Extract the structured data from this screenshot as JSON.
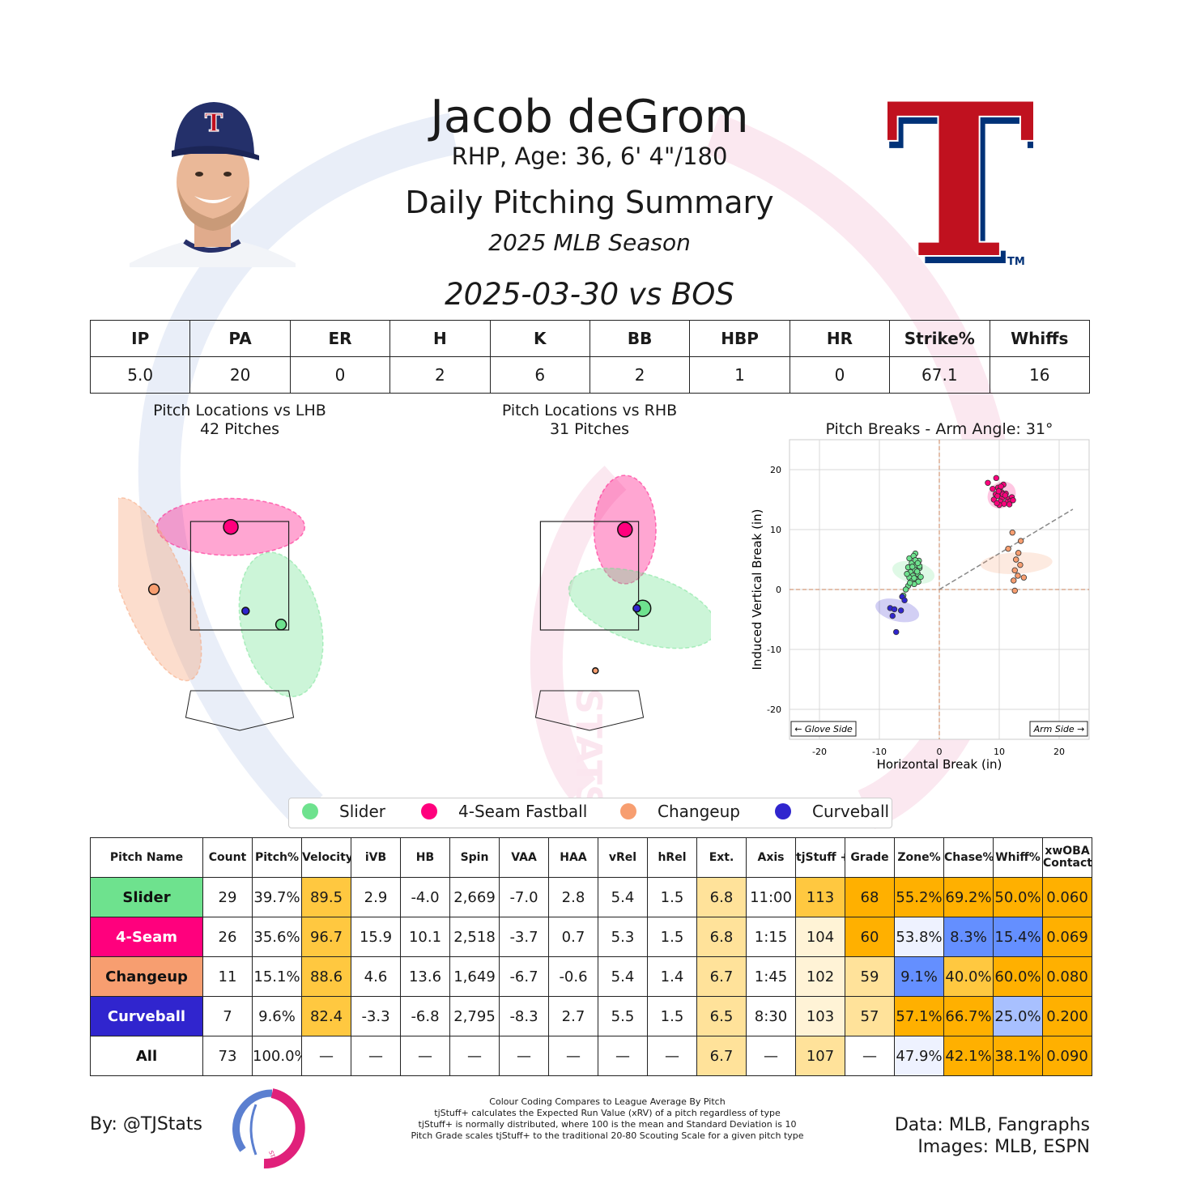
{
  "header": {
    "player_name": "Jacob deGrom",
    "player_info": "RHP, Age: 36, 6' 4\"/180",
    "report_title": "Daily Pitching Summary",
    "season": "2025 MLB Season",
    "game": "2025-03-30 vs BOS",
    "team_logo_letter": "T",
    "team_logo_tm": "TM",
    "headshot_cap_letter": "T"
  },
  "colors": {
    "slider": "#6ee28e",
    "fourseam": "#ff007d",
    "changeup": "#f79e70",
    "curveball": "#3025ce",
    "cell_hi_strong": "#ffb000",
    "cell_hi_mid": "#ffc840",
    "cell_hi_light": "#ffe29a",
    "cell_hi_faint": "#fff3d6",
    "cell_lo_strong": "#648fff",
    "cell_lo_light": "#a8c0ff",
    "cell_lo_faint": "#eef2ff"
  },
  "line_stats": {
    "headers": [
      "IP",
      "PA",
      "ER",
      "H",
      "K",
      "BB",
      "HBP",
      "HR",
      "Strike%",
      "Whiffs"
    ],
    "values": [
      "5.0",
      "20",
      "0",
      "2",
      "6",
      "2",
      "1",
      "0",
      "67.1",
      "16"
    ]
  },
  "plots": {
    "lhb_title": "Pitch Locations vs LHB",
    "lhb_count": "42 Pitches",
    "rhb_title": "Pitch Locations vs RHB",
    "rhb_count": "31 Pitches",
    "break_title": "Pitch Breaks - Arm Angle: 31°",
    "glove_side": "← Glove Side",
    "arm_side": "Arm Side →"
  },
  "legend": [
    "Slider",
    "4-Seam Fastball",
    "Changeup",
    "Curveball"
  ],
  "pitch_table": {
    "headers": [
      "Pitch Name",
      "Count",
      "Pitch%",
      "Velocity",
      "iVB",
      "HB",
      "Spin",
      "VAA",
      "HAA",
      "vRel",
      "hRel",
      "Ext.",
      "Axis",
      "tjStuff +",
      "Grade",
      "Zone%",
      "Chase%",
      "Whiff%",
      "xwOBA\nContact"
    ],
    "rows": [
      {
        "name": "Slider",
        "cells": [
          "29",
          "39.7%",
          "89.5",
          "2.9",
          "-4.0",
          "2,669",
          "-7.0",
          "2.8",
          "5.4",
          "1.5",
          "6.8",
          "11:00",
          "113",
          "68",
          "55.2%",
          "69.2%",
          "50.0%",
          "0.060"
        ]
      },
      {
        "name": "4-Seam",
        "cells": [
          "26",
          "35.6%",
          "96.7",
          "15.9",
          "10.1",
          "2,518",
          "-3.7",
          "0.7",
          "5.3",
          "1.5",
          "6.8",
          "1:15",
          "104",
          "60",
          "53.8%",
          "8.3%",
          "15.4%",
          "0.069"
        ]
      },
      {
        "name": "Changeup",
        "cells": [
          "11",
          "15.1%",
          "88.6",
          "4.6",
          "13.6",
          "1,649",
          "-6.7",
          "-0.6",
          "5.4",
          "1.4",
          "6.7",
          "1:45",
          "102",
          "59",
          "9.1%",
          "40.0%",
          "60.0%",
          "0.080"
        ]
      },
      {
        "name": "Curveball",
        "cells": [
          "7",
          "9.6%",
          "82.4",
          "-3.3",
          "-6.8",
          "2,795",
          "-8.3",
          "2.7",
          "5.5",
          "1.5",
          "6.5",
          "8:30",
          "103",
          "57",
          "57.1%",
          "66.7%",
          "25.0%",
          "0.200"
        ]
      },
      {
        "name": "All",
        "cells": [
          "73",
          "100.0%",
          "—",
          "—",
          "—",
          "—",
          "—",
          "—",
          "—",
          "—",
          "6.7",
          "—",
          "107",
          "—",
          "47.9%",
          "42.1%",
          "38.1%",
          "0.090"
        ]
      }
    ],
    "shading": [
      [
        "",
        "",
        "mid",
        "",
        "",
        "",
        "",
        "",
        "",
        "",
        "light",
        "",
        "mid",
        "strong",
        "strong",
        "strong",
        "strong",
        "strong"
      ],
      [
        "",
        "",
        "mid",
        "",
        "",
        "",
        "",
        "",
        "",
        "",
        "light",
        "",
        "faint",
        "strong",
        "lofaint",
        "lo",
        "lo",
        "strong"
      ],
      [
        "",
        "",
        "mid",
        "",
        "",
        "",
        "",
        "",
        "",
        "",
        "light",
        "",
        "faint",
        "light",
        "lo",
        "mid",
        "strong",
        "strong"
      ],
      [
        "",
        "",
        "mid",
        "",
        "",
        "",
        "",
        "",
        "",
        "",
        "light",
        "",
        "faint",
        "light",
        "strong",
        "strong",
        "lolight",
        "strong"
      ],
      [
        "",
        "",
        "",
        "",
        "",
        "",
        "",
        "",
        "",
        "",
        "light",
        "",
        "light",
        "",
        "lofaint",
        "strong",
        "strong",
        "strong"
      ]
    ]
  },
  "footer": {
    "byline": "By: @TJStats",
    "notes": [
      "Colour Coding Compares to League Average By Pitch",
      "tjStuff+ calculates the Expected Run Value (xRV) of a pitch regardless of type",
      "tjStuff+ is normally distributed, where 100 is the mean and Standard Deviation is 10",
      "Pitch Grade scales tjStuff+ to the traditional 20-80 Scouting Scale for a given pitch type"
    ],
    "data_credit": "Data: MLB, Fangraphs",
    "image_credit": "Images: MLB, ESPN",
    "logo_text": "STATS"
  },
  "chart_data": [
    {
      "type": "scatter",
      "title": "Pitch Locations vs LHB",
      "subtitle": "42 Pitches",
      "series": [
        {
          "name": "4-Seam Fastball",
          "mean": {
            "x": -0.15,
            "z": 3.4
          },
          "ellipse": {
            "w": 2.5,
            "h": 1.05,
            "angle": 0
          }
        },
        {
          "name": "Changeup",
          "mean": {
            "x": -1.45,
            "z": 2.25
          },
          "ellipse": {
            "w": 1.1,
            "h": 3.6,
            "angle": -22
          }
        },
        {
          "name": "Curveball",
          "mean": {
            "x": 0.1,
            "z": 1.85
          },
          "ellipse": {
            "w": 0,
            "h": 0,
            "angle": 0
          }
        },
        {
          "name": "Slider",
          "mean": {
            "x": 0.7,
            "z": 1.6
          },
          "ellipse": {
            "w": 1.35,
            "h": 2.7,
            "angle": -12
          }
        }
      ]
    },
    {
      "type": "scatter",
      "title": "Pitch Locations vs RHB",
      "subtitle": "31 Pitches",
      "series": [
        {
          "name": "4-Seam Fastball",
          "mean": {
            "x": 0.6,
            "z": 3.35
          },
          "ellipse": {
            "w": 1.05,
            "h": 2.0,
            "angle": 0
          }
        },
        {
          "name": "Slider",
          "mean": {
            "x": 0.9,
            "z": 1.9
          },
          "ellipse": {
            "w": 2.6,
            "h": 1.25,
            "angle": 18
          }
        },
        {
          "name": "Curveball",
          "mean": {
            "x": 0.8,
            "z": 1.9
          },
          "ellipse": {
            "w": 0,
            "h": 0,
            "angle": 0
          }
        },
        {
          "name": "Changeup",
          "mean": {
            "x": 0.1,
            "z": 0.75
          },
          "ellipse": {
            "w": 0,
            "h": 0,
            "angle": 0
          }
        }
      ]
    },
    {
      "type": "scatter",
      "title": "Pitch Breaks - Arm Angle: 31°",
      "xlabel": "Horizontal Break (in)",
      "ylabel": "Induced Vertical Break (in)",
      "xlim": [
        -25,
        25
      ],
      "ylim": [
        -25,
        25
      ],
      "xticks": [
        -20,
        -10,
        0,
        10,
        20
      ],
      "yticks": [
        -20,
        -10,
        0,
        10,
        20
      ],
      "arm_angle": 31,
      "series": [
        {
          "name": "Slider",
          "points": [
            [
              -4,
              6
            ],
            [
              -5,
              5.2
            ],
            [
              -4.3,
              5.6
            ],
            [
              -3.4,
              4.8
            ],
            [
              -4.6,
              4.4
            ],
            [
              -3.8,
              4.1
            ],
            [
              -5.2,
              3.7
            ],
            [
              -4.1,
              3.3
            ],
            [
              -3.3,
              3.6
            ],
            [
              -4.8,
              2.9
            ],
            [
              -3.6,
              2.6
            ],
            [
              -4.4,
              2.3
            ],
            [
              -5,
              2
            ],
            [
              -3.9,
              1.7
            ],
            [
              -4.6,
              1.4
            ],
            [
              -3.5,
              1.3
            ],
            [
              -4.2,
              0.9
            ],
            [
              -5.2,
              0.6
            ],
            [
              -3.7,
              3
            ],
            [
              -4.5,
              3.8
            ],
            [
              -3.1,
              2.1
            ],
            [
              -5.4,
              2.6
            ],
            [
              -4,
              4.9
            ],
            [
              -4.9,
              1.1
            ],
            [
              -3.3,
              3.9
            ],
            [
              -5.6,
              0
            ],
            [
              -6,
              -1
            ],
            [
              -4.2,
              1.9
            ],
            [
              -3.6,
              4.4
            ]
          ]
        },
        {
          "name": "4-Seam Fastball",
          "points": [
            [
              9.5,
              18.6
            ],
            [
              8.1,
              17.8
            ],
            [
              10.7,
              17.5
            ],
            [
              9.8,
              17
            ],
            [
              10.1,
              16.6
            ],
            [
              10.4,
              16.2
            ],
            [
              9.4,
              15.9
            ],
            [
              11.1,
              16
            ],
            [
              9.7,
              15.6
            ],
            [
              10.5,
              15.3
            ],
            [
              11.5,
              15.1
            ],
            [
              9.1,
              15
            ],
            [
              10.2,
              14.7
            ],
            [
              11.3,
              14.6
            ],
            [
              10.8,
              14.3
            ],
            [
              12.1,
              15.4
            ],
            [
              11.9,
              14.8
            ],
            [
              10.6,
              15.9
            ],
            [
              9.9,
              16.4
            ],
            [
              11.7,
              14.2
            ],
            [
              10.3,
              17.2
            ],
            [
              8.9,
              16.8
            ],
            [
              12.3,
              14.9
            ],
            [
              10,
              14.1
            ],
            [
              11,
              15.7
            ],
            [
              9.6,
              14.4
            ]
          ]
        },
        {
          "name": "Changeup",
          "points": [
            [
              12.2,
              9.5
            ],
            [
              13.6,
              8.1
            ],
            [
              11.5,
              6.8
            ],
            [
              13.2,
              6.1
            ],
            [
              12.8,
              5
            ],
            [
              13.5,
              4.1
            ],
            [
              12.6,
              3.2
            ],
            [
              13.1,
              2.3
            ],
            [
              14.1,
              2
            ],
            [
              12.4,
              1.5
            ],
            [
              12.6,
              -0.2
            ]
          ]
        },
        {
          "name": "Curveball",
          "points": [
            [
              -6.2,
              -1.2
            ],
            [
              -5.8,
              -1.8
            ],
            [
              -8.2,
              -3.1
            ],
            [
              -7.5,
              -3.3
            ],
            [
              -6.4,
              -3.5
            ],
            [
              -7.8,
              -4.4
            ],
            [
              -7.2,
              -7.1
            ]
          ]
        }
      ]
    }
  ]
}
